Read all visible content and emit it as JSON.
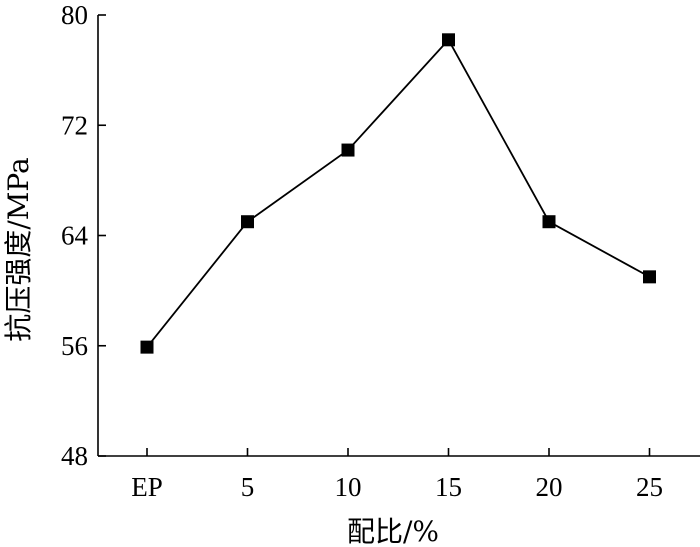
{
  "chart_data": {
    "type": "line",
    "categories": [
      "EP",
      "5",
      "10",
      "15",
      "20",
      "25"
    ],
    "series": [
      {
        "values": [
          55.9,
          65.0,
          70.2,
          78.2,
          65.0,
          61.0
        ],
        "marker": "square",
        "color": "#000000"
      }
    ],
    "title": "",
    "xlabel": "配比/%",
    "ylabel": "抗压强度/MPa",
    "ylim": [
      48,
      80
    ],
    "yticks": [
      48,
      56,
      64,
      72,
      80
    ],
    "grid": false,
    "legend": "none"
  }
}
